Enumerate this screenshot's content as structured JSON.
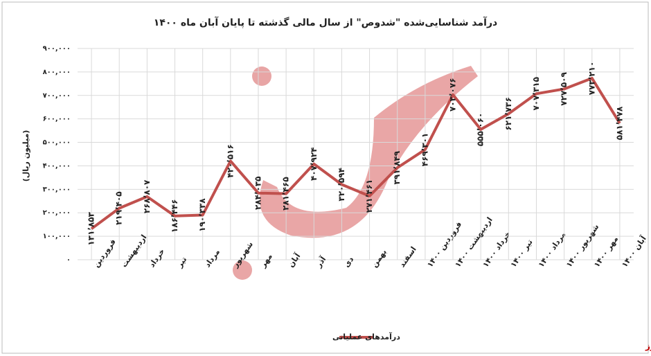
{
  "chart_data": {
    "type": "line",
    "title": "درآمد شناسایی‌شده \"شدوص\" از سال مالی گذشته تا پایان آبان ماه ۱۴۰۰",
    "y_label": "(میلیون ریال)",
    "source": "بورس نیوز",
    "categories": [
      "فروردین",
      "اردیبهشت",
      "خرداد",
      "تیر",
      "مرداد",
      "شهریور",
      "مهر",
      "آبان",
      "آذر",
      "دی",
      "بهمن",
      "اسفند",
      "فروردین ۱۴۰۰",
      "اردیبهشت ۱۴۰۰",
      "خرداد ۱۴۰۰",
      "تیر ۱۴۰۰",
      "مرداد ۱۴۰۰",
      "شهریور ۱۴۰۰",
      "مهر ۱۴۰۰",
      "آبان ۱۴۰۰"
    ],
    "series": [
      {
        "name": "درآمدهای عملیاتی",
        "color": "#c0504d",
        "values": [
          131853,
          219405,
          268807,
          186446,
          190338,
          420516,
          284035,
          281465,
          407924,
          320594,
          271461,
          391849,
          469301,
          703076,
          555060,
          621736,
          707315,
          727509,
          773210,
          581478
        ],
        "value_labels": [
          "۱۳۱٬۸۵۳",
          "۲۱۹٬۴۰۵",
          "۲۶۸٬۸۰۷",
          "۱۸۶٬۴۴۶",
          "۱۹۰٬۳۳۸",
          "۴۲۰٬۵۱۶",
          "۲۸۴٬۰۳۵",
          "۲۸۱٬۴۶۵",
          "۴۰۷٬۹۲۴",
          "۳۲۰٬۵۹۴",
          "۲۷۱٬۴۶۱",
          "۳۹۱٬۸۴۹",
          "۴۶۹٬۳۰۱",
          "۷۰۳٬۰۷۶",
          "۵۵۵٬۰۶۰",
          "۶۲۱٬۷۳۶",
          "۷۰۷٬۳۱۵",
          "۷۲۷٬۵۰۹",
          "۷۷۳٬۲۱۰",
          "۵۸۱٬۴۷۸"
        ]
      }
    ],
    "ylim": [
      0,
      900000
    ],
    "yticks": [
      {
        "value": 0,
        "label": "۰"
      },
      {
        "value": 100000,
        "label": "۱۰۰,۰۰۰"
      },
      {
        "value": 200000,
        "label": "۲۰۰,۰۰۰"
      },
      {
        "value": 300000,
        "label": "۳۰۰,۰۰۰"
      },
      {
        "value": 400000,
        "label": "۴۰۰,۰۰۰"
      },
      {
        "value": 500000,
        "label": "۵۰۰,۰۰۰"
      },
      {
        "value": 600000,
        "label": "۶۰۰,۰۰۰"
      },
      {
        "value": 700000,
        "label": "۷۰۰,۰۰۰"
      },
      {
        "value": 800000,
        "label": "۸۰۰,۰۰۰"
      },
      {
        "value": 900000,
        "label": "۹۰۰,۰۰۰"
      }
    ],
    "grid": true
  }
}
